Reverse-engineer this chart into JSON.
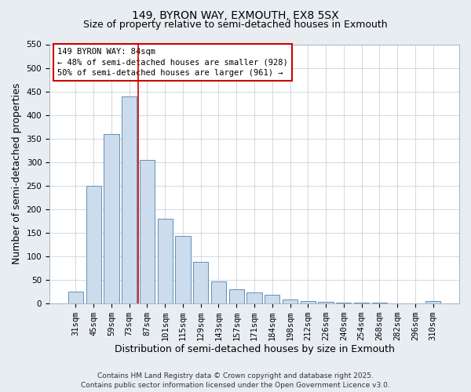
{
  "title": "149, BYRON WAY, EXMOUTH, EX8 5SX",
  "subtitle": "Size of property relative to semi-detached houses in Exmouth",
  "xlabel": "Distribution of semi-detached houses by size in Exmouth",
  "ylabel": "Number of semi-detached properties",
  "categories": [
    "31sqm",
    "45sqm",
    "59sqm",
    "73sqm",
    "87sqm",
    "101sqm",
    "115sqm",
    "129sqm",
    "143sqm",
    "157sqm",
    "171sqm",
    "184sqm",
    "198sqm",
    "212sqm",
    "226sqm",
    "240sqm",
    "254sqm",
    "268sqm",
    "282sqm",
    "296sqm",
    "310sqm"
  ],
  "values": [
    25,
    250,
    360,
    440,
    305,
    180,
    143,
    87,
    47,
    30,
    23,
    18,
    8,
    5,
    3,
    2,
    1,
    1,
    0,
    0,
    5
  ],
  "bar_color": "#ccdcec",
  "bar_edge_color": "#6090b8",
  "vline_color": "#cc0000",
  "vline_pos": 3.5,
  "annotation_title": "149 BYRON WAY: 84sqm",
  "annotation_line1": "← 48% of semi-detached houses are smaller (928)",
  "annotation_line2": "50% of semi-detached houses are larger (961) →",
  "annotation_box_color": "#ffffff",
  "annotation_box_edge": "#cc0000",
  "ylim": [
    0,
    550
  ],
  "yticks": [
    0,
    50,
    100,
    150,
    200,
    250,
    300,
    350,
    400,
    450,
    500,
    550
  ],
  "footer1": "Contains HM Land Registry data © Crown copyright and database right 2025.",
  "footer2": "Contains public sector information licensed under the Open Government Licence v3.0.",
  "bg_color": "#e8edf2",
  "plot_bg_color": "#ffffff",
  "grid_color": "#c8d4de",
  "title_fontsize": 10,
  "subtitle_fontsize": 9,
  "tick_fontsize": 7.5,
  "label_fontsize": 9,
  "footer_fontsize": 6.5
}
